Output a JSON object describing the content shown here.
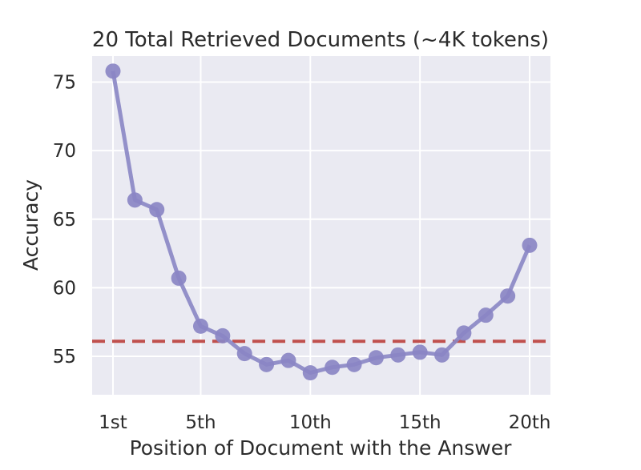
{
  "chart_data": {
    "type": "line",
    "title": "20 Total Retrieved Documents (~4K tokens)",
    "xlabel": "Position of Document with the Answer",
    "ylabel": "Accuracy",
    "x": [
      1,
      2,
      3,
      4,
      5,
      6,
      7,
      8,
      9,
      10,
      11,
      12,
      13,
      14,
      15,
      16,
      17,
      18,
      19,
      20
    ],
    "xticks": [
      1,
      5,
      10,
      15,
      20
    ],
    "xtick_labels": [
      "1st",
      "5th",
      "10th",
      "15th",
      "20th"
    ],
    "yticks": [
      55,
      60,
      65,
      70,
      75
    ],
    "ytick_labels": [
      "55",
      "60",
      "65",
      "70",
      "75"
    ],
    "xlim": [
      0.05,
      20.95
    ],
    "ylim": [
      52.2,
      76.9
    ],
    "grid": true,
    "series": [
      {
        "values": [
          75.8,
          66.4,
          65.7,
          60.7,
          57.2,
          56.5,
          55.2,
          54.4,
          54.7,
          53.8,
          54.2,
          54.4,
          54.9,
          55.1,
          55.3,
          55.1,
          56.7,
          58.0,
          59.4,
          63.1
        ],
        "color": "#8a86c4"
      }
    ],
    "reference_line": {
      "y": 56.1,
      "color": "#c0504d",
      "style": "dashed"
    }
  }
}
